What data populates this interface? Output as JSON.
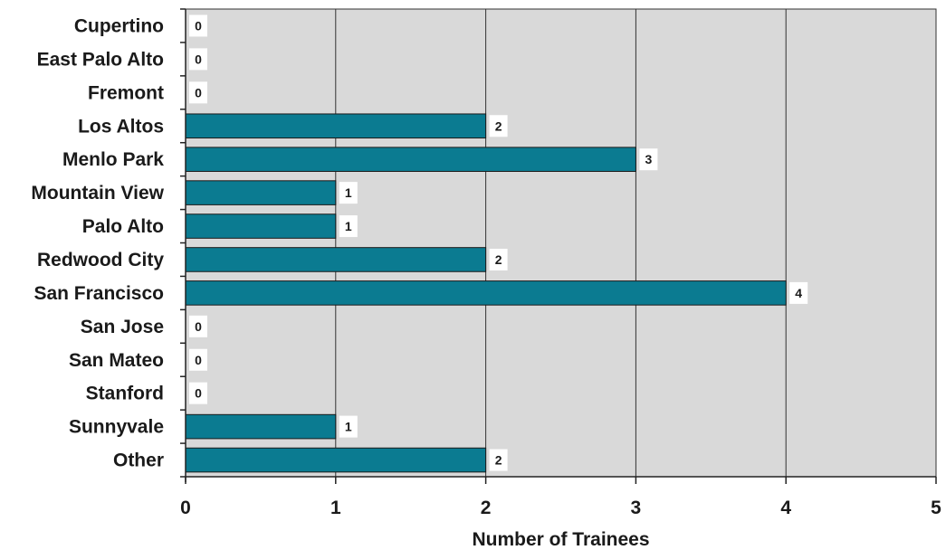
{
  "chart_data": {
    "type": "bar",
    "orientation": "horizontal",
    "categories": [
      "Cupertino",
      "East Palo Alto",
      "Fremont",
      "Los Altos",
      "Menlo Park",
      "Mountain View",
      "Palo Alto",
      "Redwood City",
      "San Francisco",
      "San Jose",
      "San Mateo",
      "Stanford",
      "Sunnyvale",
      "Other"
    ],
    "values": [
      0,
      0,
      0,
      2,
      3,
      1,
      1,
      2,
      4,
      0,
      0,
      0,
      1,
      2
    ],
    "title": "",
    "xlabel": "Number of Trainees",
    "ylabel": "",
    "xlim": [
      0,
      5
    ],
    "xticks": [
      "0",
      "1",
      "2",
      "3",
      "4",
      "5"
    ],
    "grid": "vertical",
    "data_labels": true,
    "legend": "none"
  },
  "colors": {
    "bar": "#0b7b91",
    "plot_background": "#d9d9d9",
    "gridline": "#333333",
    "label_box": "#ffffff"
  }
}
